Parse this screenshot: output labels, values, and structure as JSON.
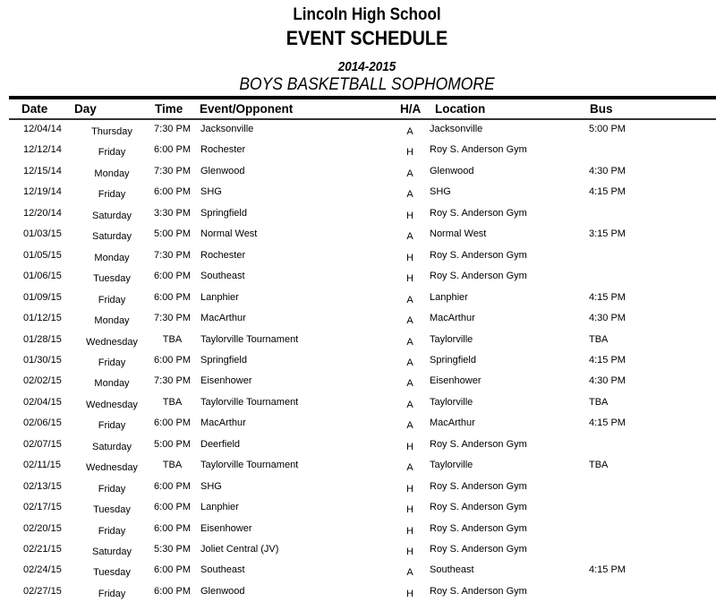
{
  "header": {
    "school": "Lincoln High School",
    "title": "EVENT SCHEDULE",
    "season": "2014-2015",
    "sport": "BOYS BASKETBALL SOPHOMORE"
  },
  "columns": [
    "Date",
    "Day",
    "Time",
    "Event/Opponent",
    "H/A",
    "Location",
    "Bus"
  ],
  "rows": [
    [
      "12/04/14",
      "Thursday",
      "7:30 PM",
      "Jacksonville",
      "A",
      "Jacksonville",
      "5:00 PM"
    ],
    [
      "12/12/14",
      "Friday",
      "6:00 PM",
      "Rochester",
      "H",
      "Roy S. Anderson Gym",
      ""
    ],
    [
      "12/15/14",
      "Monday",
      "7:30 PM",
      "Glenwood",
      "A",
      "Glenwood",
      "4:30 PM"
    ],
    [
      "12/19/14",
      "Friday",
      "6:00 PM",
      "SHG",
      "A",
      "SHG",
      "4:15 PM"
    ],
    [
      "12/20/14",
      "Saturday",
      "3:30 PM",
      "Springfield",
      "H",
      "Roy S. Anderson Gym",
      ""
    ],
    [
      "01/03/15",
      "Saturday",
      "5:00 PM",
      "Normal West",
      "A",
      "Normal West",
      "3:15 PM"
    ],
    [
      "01/05/15",
      "Monday",
      "7:30 PM",
      "Rochester",
      "H",
      "Roy S. Anderson Gym",
      ""
    ],
    [
      "01/06/15",
      "Tuesday",
      "6:00 PM",
      "Southeast",
      "H",
      "Roy S. Anderson Gym",
      ""
    ],
    [
      "01/09/15",
      "Friday",
      "6:00 PM",
      "Lanphier",
      "A",
      "Lanphier",
      "4:15 PM"
    ],
    [
      "01/12/15",
      "Monday",
      "7:30 PM",
      "MacArthur",
      "A",
      "MacArthur",
      "4:30 PM"
    ],
    [
      "01/28/15",
      "Wednesday",
      "TBA",
      "Taylorville Tournament",
      "A",
      "Taylorville",
      "TBA"
    ],
    [
      "01/30/15",
      "Friday",
      "6:00 PM",
      "Springfield",
      "A",
      "Springfield",
      "4:15 PM"
    ],
    [
      "02/02/15",
      "Monday",
      "7:30 PM",
      "Eisenhower",
      "A",
      "Eisenhower",
      "4:30 PM"
    ],
    [
      "02/04/15",
      "Wednesday",
      "TBA",
      "Taylorville Tournament",
      "A",
      "Taylorville",
      "TBA"
    ],
    [
      "02/06/15",
      "Friday",
      "6:00 PM",
      "MacArthur",
      "A",
      "MacArthur",
      "4:15 PM"
    ],
    [
      "02/07/15",
      "Saturday",
      "5:00 PM",
      "Deerfield",
      "H",
      "Roy S. Anderson Gym",
      ""
    ],
    [
      "02/11/15",
      "Wednesday",
      "TBA",
      "Taylorville Tournament",
      "A",
      "Taylorville",
      "TBA"
    ],
    [
      "02/13/15",
      "Friday",
      "6:00 PM",
      "SHG",
      "H",
      "Roy S. Anderson Gym",
      ""
    ],
    [
      "02/17/15",
      "Tuesday",
      "6:00 PM",
      "Lanphier",
      "H",
      "Roy S. Anderson Gym",
      ""
    ],
    [
      "02/20/15",
      "Friday",
      "6:00 PM",
      "Eisenhower",
      "H",
      "Roy S. Anderson Gym",
      ""
    ],
    [
      "02/21/15",
      "Saturday",
      "5:30 PM",
      "Joliet Central (JV)",
      "H",
      "Roy S. Anderson Gym",
      ""
    ],
    [
      "02/24/15",
      "Tuesday",
      "6:00 PM",
      "Southeast",
      "A",
      "Southeast",
      "4:15 PM"
    ],
    [
      "02/27/15",
      "Friday",
      "6:00 PM",
      "Glenwood",
      "H",
      "Roy S. Anderson Gym",
      ""
    ]
  ]
}
